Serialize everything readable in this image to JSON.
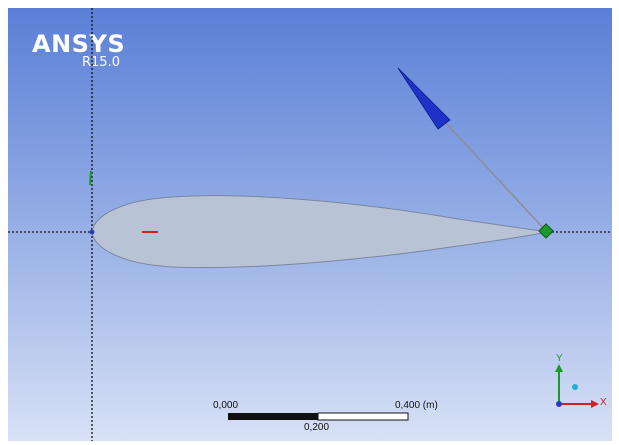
{
  "brand": {
    "name": "ANSYS",
    "release": "R15.0"
  },
  "scale_bar": {
    "label_start": "0,000",
    "label_mid": "0,200",
    "label_end": "0,400 (m)"
  },
  "triad": {
    "x_label": "X",
    "y_label": "Y"
  },
  "colors": {
    "background_top": "#5a7fd6",
    "background_bottom": "#d8e1f6",
    "airfoil_fill": "#b8c4d6",
    "load_arrow": "#1e32c8",
    "vertex_marker": "#1a9a2a",
    "x_axis": "#d22020",
    "y_axis": "#1a9a2a",
    "z_axis": "#2040c0"
  }
}
